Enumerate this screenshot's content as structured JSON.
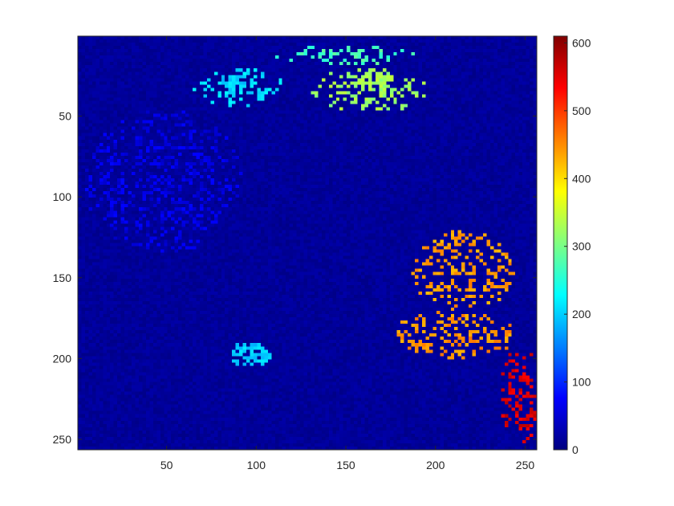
{
  "chart_data": {
    "type": "heatmap",
    "title": "",
    "xlabel": "",
    "ylabel": "",
    "colormap": "jet",
    "image_size": [
      256,
      256
    ],
    "xlim": [
      0.5,
      256.5
    ],
    "ylim": [
      0.5,
      256.5
    ],
    "y_direction": "reverse",
    "x_ticks": [
      50,
      100,
      150,
      200,
      250
    ],
    "y_ticks": [
      50,
      100,
      150,
      200,
      250
    ],
    "colorbar": {
      "range": [
        0,
        610
      ],
      "ticks": [
        0,
        100,
        200,
        300,
        400,
        500,
        600
      ]
    },
    "background_value": 15,
    "regions": [
      {
        "name": "left-eye-ring",
        "cx": 90,
        "cy": 32,
        "rx": 27,
        "ry": 12,
        "value": 210
      },
      {
        "name": "left-eye-inner",
        "cx": 88,
        "cy": 28,
        "rx": 10,
        "ry": 5,
        "value": 200
      },
      {
        "name": "right-eye-ring",
        "cx": 163,
        "cy": 33,
        "rx": 36,
        "ry": 14,
        "value": 325
      },
      {
        "name": "right-eye-inner",
        "cx": 166,
        "cy": 27,
        "rx": 11,
        "ry": 6,
        "value": 330
      },
      {
        "name": "brow-arc",
        "cx": 150,
        "cy": 12,
        "rx": 40,
        "ry": 6,
        "value": 270
      },
      {
        "name": "right-cheek-upper",
        "cx": 215,
        "cy": 145,
        "rx": 30,
        "ry": 25,
        "value": 440
      },
      {
        "name": "right-cheek-lower",
        "cx": 210,
        "cy": 185,
        "rx": 35,
        "ry": 15,
        "value": 445
      },
      {
        "name": "right-edge",
        "cx": 247,
        "cy": 222,
        "rx": 12,
        "ry": 30,
        "value": 555
      },
      {
        "name": "left-nostril",
        "cx": 96,
        "cy": 197,
        "rx": 12,
        "ry": 8,
        "value": 200
      },
      {
        "name": "left-cheek",
        "cx": 48,
        "cy": 90,
        "rx": 45,
        "ry": 45,
        "value": 60
      }
    ]
  }
}
